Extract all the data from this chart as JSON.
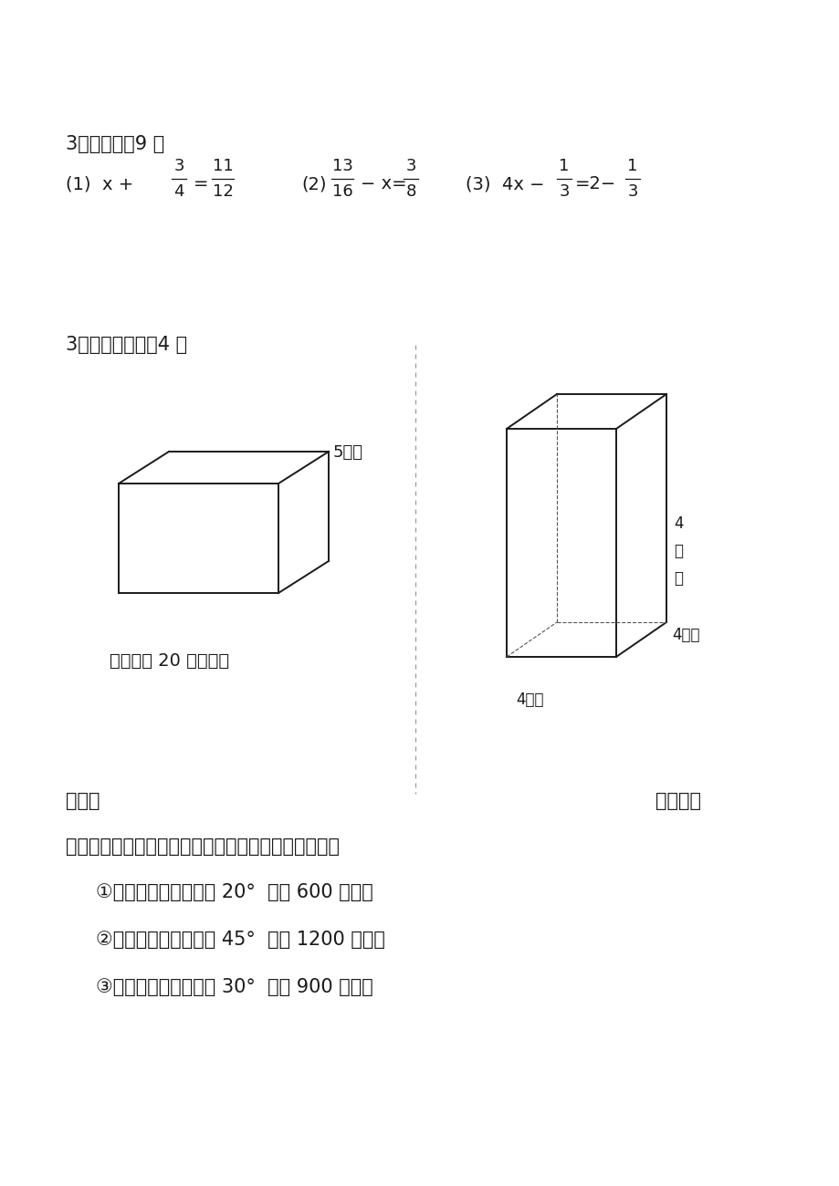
{
  "bg_color": "#ffffff",
  "text_color": "#1a1a1a",
  "title1": "3、解方程。9 分",
  "eq1_prefix": "(1)  x + ",
  "eq1_frac1_num": "3",
  "eq1_frac1_den": "4",
  "eq1_equals": "=",
  "eq1_frac2_num": "11",
  "eq1_frac2_den": "12",
  "eq2_prefix": "(2)",
  "eq2_frac1_num": "13",
  "eq2_frac1_den": "16",
  "eq2_mid": "− x=",
  "eq2_frac2_num": "3",
  "eq2_frac2_den": "8",
  "eq3_prefix": "(3)  4x −",
  "eq3_frac1_num": "1",
  "eq3_frac1_den": "3",
  "eq3_mid": "=2−",
  "eq3_frac2_num": "1",
  "eq3_frac2_den": "3",
  "title2": "3、按要求计算。4 分",
  "label_5dm": "5分米",
  "label_base": "底面积是 20 平方分米",
  "label_4cm_right": "4厘米",
  "label_4cm_front": "4厘米",
  "label_4cm_h_line1": "4",
  "label_4cm_h_line2": "厘",
  "label_4cm_h_line3": "米",
  "title_ti": "体积：",
  "title_biao": "表面积：",
  "section5": "五、根据下面的描述，在平面图上标出各场所的位置。",
  "item1": "①小丽家在广场北偏西 20°  方向 600 米处。",
  "item2": "②小彬家在广场西偏南 45°  方向 1200 米处。",
  "item3": "③柳柳家在广场南偏东 30°  方向 900 米处。"
}
